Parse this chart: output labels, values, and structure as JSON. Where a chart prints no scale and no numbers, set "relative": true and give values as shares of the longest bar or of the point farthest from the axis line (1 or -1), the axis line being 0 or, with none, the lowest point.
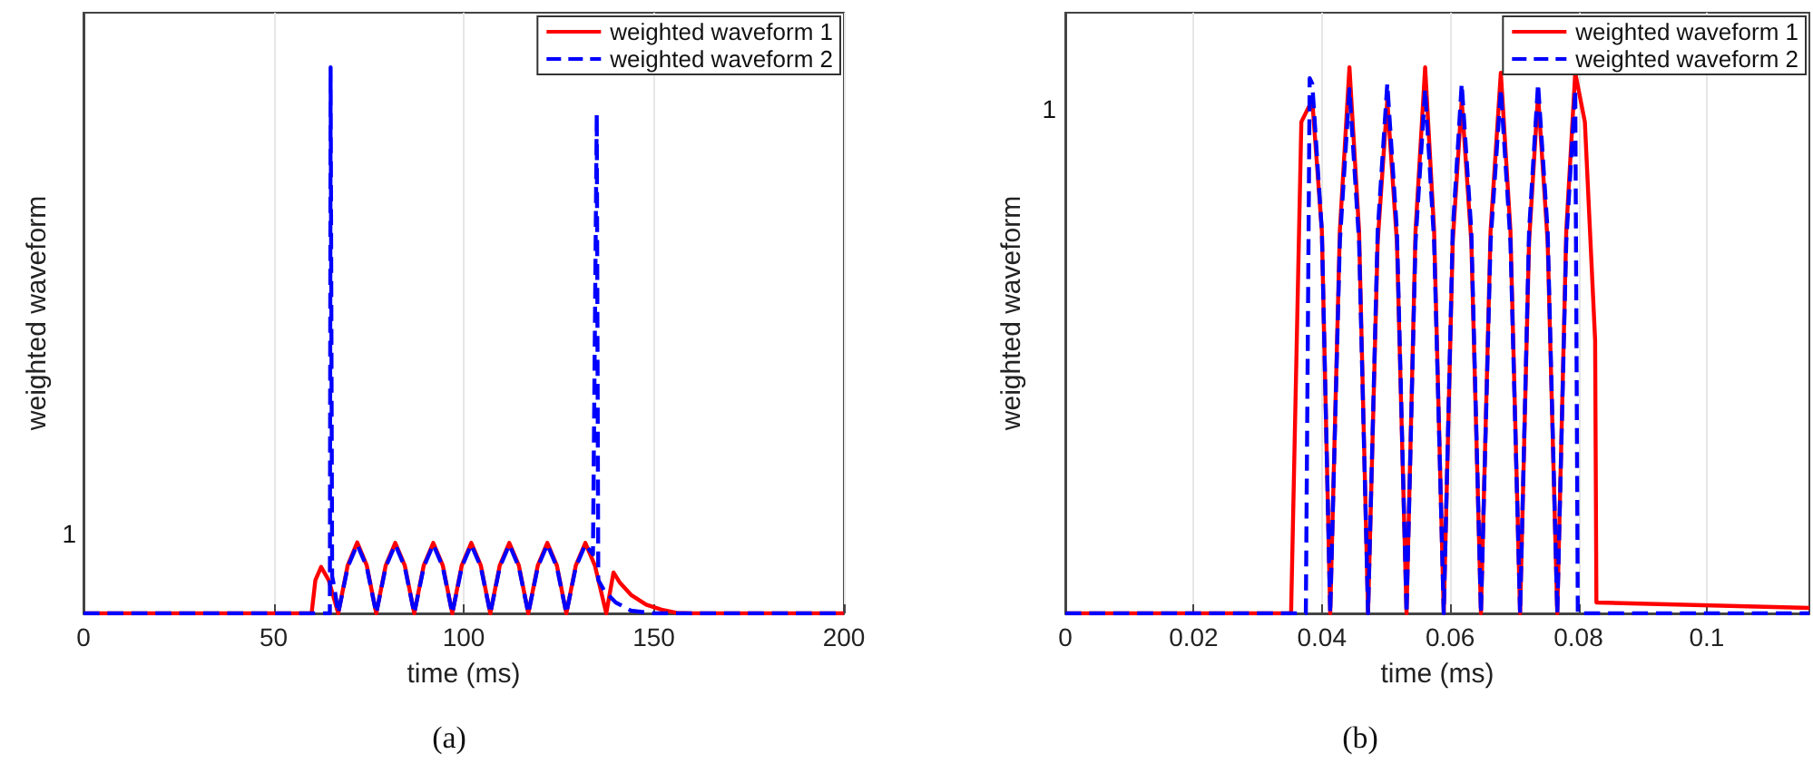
{
  "chart_data": [
    {
      "type": "line",
      "relative": true,
      "xlabel": "time (ms)",
      "ylabel": "weighted waveform",
      "annotations": [
        "1",
        "(a)"
      ],
      "xlim": [
        0,
        200
      ],
      "xticks": [
        0,
        50,
        100,
        150,
        200
      ],
      "grid": "x",
      "legend": "top right",
      "marker": "none",
      "series": [
        {
          "name": "weighted waveform 1",
          "color": "#ff0000",
          "line_style": "solid",
          "x": [
            0,
            60,
            61,
            62.5,
            64.5,
            67,
            69.5,
            72,
            74.5,
            77,
            79.5,
            82,
            84.5,
            87,
            89.5,
            92,
            94.5,
            97,
            99.5,
            102,
            104.5,
            107,
            109.5,
            112,
            114.5,
            117,
            119.5,
            122,
            124.5,
            127,
            129.5,
            132,
            134.5,
            137.5,
            139.4,
            141,
            144,
            148,
            152,
            156,
            160,
            200
          ],
          "values": [
            0,
            0,
            0.061,
            0.085,
            0.061,
            0,
            0.088,
            0.13,
            0.088,
            0,
            0.088,
            0.129,
            0.088,
            0,
            0.088,
            0.129,
            0.088,
            0,
            0.088,
            0.129,
            0.088,
            0,
            0.088,
            0.129,
            0.088,
            0,
            0.088,
            0.129,
            0.088,
            0,
            0.088,
            0.129,
            0.088,
            0,
            0.075,
            0.057,
            0.034,
            0.016,
            0.007,
            0.001,
            0,
            0
          ]
        },
        {
          "name": "weighted waveform 2",
          "color": "#0000ff",
          "line_style": "dashed",
          "x": [
            0,
            64.8,
            65,
            65.4,
            66,
            67,
            69.5,
            72,
            74.5,
            77,
            79.5,
            82,
            84.5,
            87,
            89.5,
            92,
            94.5,
            97,
            99.5,
            102,
            104.5,
            107,
            109.5,
            112,
            114.5,
            117,
            119.5,
            122,
            124.5,
            127,
            129.5,
            132,
            134,
            135,
            135.4,
            137,
            140,
            144,
            150,
            200
          ],
          "values": [
            0,
            0,
            1,
            0.068,
            0.047,
            0,
            0.085,
            0.126,
            0.085,
            0,
            0.085,
            0.126,
            0.085,
            0,
            0.085,
            0.126,
            0.085,
            0,
            0.085,
            0.126,
            0.085,
            0,
            0.085,
            0.126,
            0.085,
            0,
            0.085,
            0.126,
            0.085,
            0,
            0.085,
            0.126,
            0.108,
            0.915,
            0.061,
            0.041,
            0.02,
            0.005,
            0,
            0
          ]
        }
      ]
    },
    {
      "type": "line",
      "relative": true,
      "xlabel": "time (ms)",
      "ylabel": "weighted waveform",
      "annotations": [
        "1",
        "(b)"
      ],
      "xlim": [
        0,
        0.116
      ],
      "xticks": [
        0,
        0.02,
        0.04,
        0.06,
        0.08,
        0.1
      ],
      "grid": "x",
      "legend": "top right",
      "marker": "none",
      "series": [
        {
          "name": "weighted waveform 1",
          "color": "#ff0000",
          "line_style": "solid",
          "x": [
            0,
            0.0352,
            0.0368,
            0.0385,
            0.04,
            0.0413,
            0.0428,
            0.0443,
            0.0458,
            0.0472,
            0.0487,
            0.0502,
            0.0517,
            0.0532,
            0.0546,
            0.0561,
            0.0575,
            0.059,
            0.0604,
            0.0618,
            0.0633,
            0.0648,
            0.0663,
            0.0679,
            0.0694,
            0.0709,
            0.0723,
            0.0737,
            0.0752,
            0.0767,
            0.0781,
            0.0795,
            0.081,
            0.0826,
            0.0828,
            0.116
          ],
          "values": [
            0,
            0,
            0.9,
            0.94,
            0.7,
            0,
            0.7,
            1.0,
            0.7,
            0,
            0.68,
            0.94,
            0.68,
            0,
            0.7,
            1.0,
            0.7,
            0,
            0.68,
            0.94,
            0.68,
            0,
            0.7,
            0.99,
            0.7,
            0,
            0.68,
            0.95,
            0.68,
            0,
            0.7,
            0.99,
            0.9,
            0.5,
            0.02,
            0.01
          ]
        },
        {
          "name": "weighted waveform 2",
          "color": "#0000ff",
          "line_style": "dashed",
          "x": [
            0,
            0.0375,
            0.0381,
            0.0385,
            0.04,
            0.0413,
            0.0428,
            0.0443,
            0.0458,
            0.0472,
            0.0487,
            0.0502,
            0.0517,
            0.0532,
            0.0546,
            0.0561,
            0.0575,
            0.059,
            0.0604,
            0.0618,
            0.0633,
            0.0648,
            0.0663,
            0.0679,
            0.0694,
            0.0709,
            0.0723,
            0.0737,
            0.0752,
            0.0767,
            0.0781,
            0.0795,
            0.0799,
            0.116
          ],
          "values": [
            0,
            0,
            0.98,
            0.97,
            0.7,
            0,
            0.68,
            0.96,
            0.68,
            0,
            0.7,
            0.97,
            0.7,
            0,
            0.68,
            0.96,
            0.68,
            0,
            0.7,
            0.97,
            0.7,
            0,
            0.68,
            0.96,
            0.68,
            0,
            0.7,
            0.97,
            0.7,
            0,
            0.68,
            0.96,
            0,
            0
          ]
        }
      ]
    }
  ]
}
